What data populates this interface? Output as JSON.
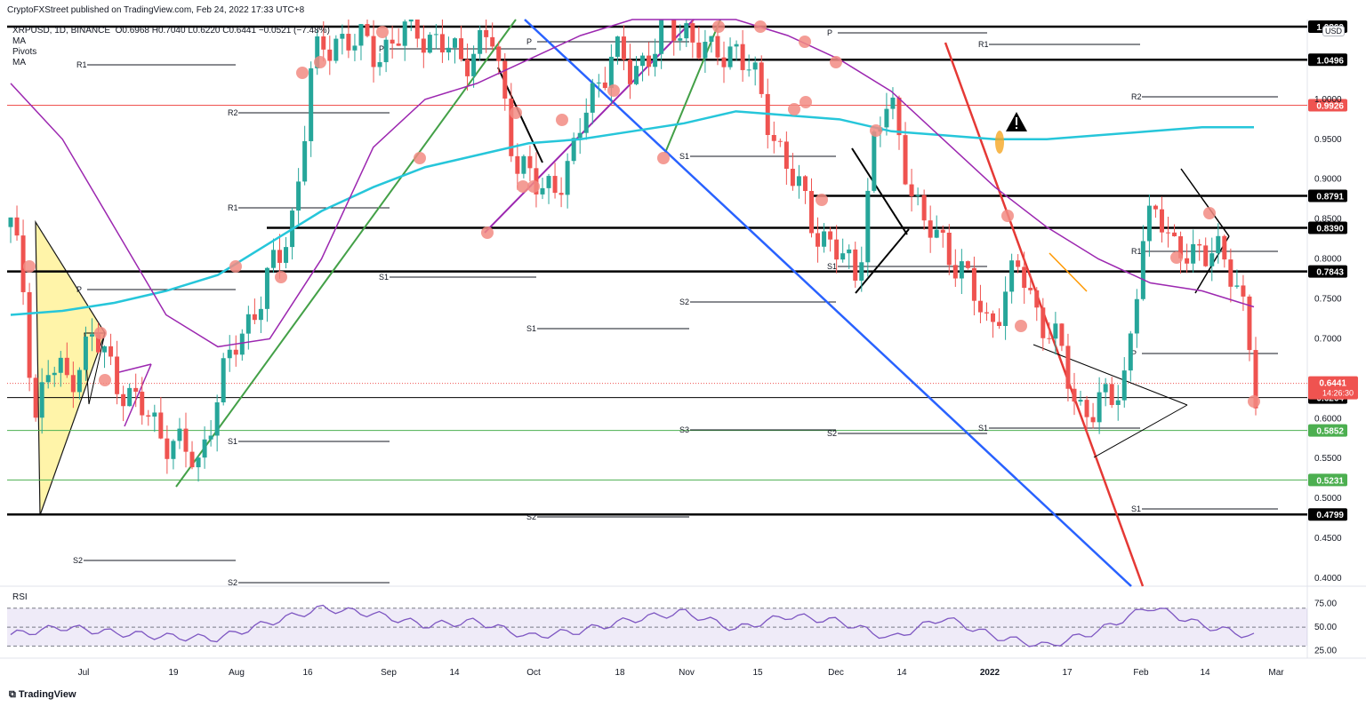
{
  "header": {
    "published": "CryptoFXStreet published on TradingView.com, Feb 24, 2022 17:33 UTC+8",
    "symbol": "XRPUSD, 1D, BINANCE",
    "ohlc": "O0.6968 H0.7040 L0.6220 C0.6441 −0.0521 (−7.48%)",
    "indicators": [
      "MA",
      "Pivots",
      "MA"
    ]
  },
  "currency": "USD",
  "brand": "TradingView",
  "rsi_label": "RSI",
  "colors": {
    "up": "#26a69a",
    "down": "#ef5350",
    "ma_short": "#9c27b0",
    "ma_long": "#26c6da",
    "trend_green": "#43a047",
    "trend_blue": "#2962ff",
    "trend_red": "#e53935",
    "level_black": "#000000",
    "level_green": "#4caf50",
    "marker": "#f28b82"
  },
  "chart_data": [
    {
      "type": "line",
      "title": "",
      "y_axis_ticks": [
        0.4,
        0.45,
        0.5,
        0.55,
        0.6,
        0.65,
        0.7,
        0.75,
        0.8,
        0.85,
        0.9,
        0.95,
        1.0
      ],
      "y_axis_tick_labels": [
        "0.4000",
        "0.4500",
        "0.5000",
        "0.5500",
        "0.6000",
        "",
        "0.7000",
        "0.7500",
        "0.8000",
        "0.8500",
        "0.9000",
        "0.9500",
        "1.0000"
      ],
      "x_axis_ticks": [
        "Jul",
        "19",
        "Aug",
        "16",
        "Sep",
        "14",
        "Oct",
        "18",
        "Nov",
        "15",
        "Dec",
        "14",
        "2022",
        "17",
        "Feb",
        "14",
        "Mar"
      ],
      "ylim": [
        0.39,
        1.1
      ],
      "price_levels": [
        {
          "value": 1.0496,
          "label": "1.0496",
          "color": "#000000"
        },
        {
          "value": 0.9926,
          "label": "0.9926",
          "color": "#ef5350"
        },
        {
          "value": 0.8791,
          "label": "0.8791",
          "color": "#000000"
        },
        {
          "value": 0.839,
          "label": "0.8390",
          "color": "#000000"
        },
        {
          "value": 0.7843,
          "label": "0.7843",
          "color": "#000000"
        },
        {
          "value": 0.6264,
          "label": "0.6264",
          "color": "#000000"
        },
        {
          "value": 0.5852,
          "label": "0.5852",
          "color": "#4caf50"
        },
        {
          "value": 0.5231,
          "label": "0.5231",
          "color": "#4caf50"
        },
        {
          "value": 0.4799,
          "label": "0.4799",
          "color": "#000000"
        }
      ],
      "current_price": {
        "value": 0.6441,
        "label": "0.6441",
        "countdown": "14:26:30"
      },
      "top_level_label": "1.0860",
      "pivot_labels": [
        "P",
        "R1",
        "R2",
        "S1",
        "S2",
        "S3"
      ],
      "series": [
        {
          "name": "MA",
          "x": [
            0,
            10,
            20,
            30,
            40,
            50,
            60,
            70,
            80,
            90,
            100,
            110,
            120,
            130,
            140,
            150,
            160,
            170,
            180,
            190,
            200,
            210,
            220,
            230,
            240
          ],
          "values": [
            0.73,
            0.735,
            0.745,
            0.76,
            0.78,
            0.82,
            0.86,
            0.89,
            0.915,
            0.93,
            0.945,
            0.95,
            0.96,
            0.97,
            0.985,
            0.98,
            0.975,
            0.96,
            0.955,
            0.95,
            0.95,
            0.955,
            0.96,
            0.965,
            0.965
          ]
        },
        {
          "name": "MA",
          "x": [
            0,
            10,
            20,
            30,
            40,
            50,
            60,
            70,
            80,
            90,
            100,
            110,
            120,
            130,
            140,
            150,
            160,
            170,
            180,
            190,
            200,
            210,
            220,
            230,
            240
          ],
          "values": [
            1.02,
            0.95,
            0.84,
            0.73,
            0.69,
            0.7,
            0.8,
            0.94,
            1.0,
            1.02,
            1.05,
            1.08,
            1.1,
            1.11,
            1.1,
            1.08,
            1.05,
            1.01,
            0.95,
            0.89,
            0.84,
            0.8,
            0.77,
            0.76,
            0.74
          ]
        }
      ]
    },
    {
      "type": "line",
      "title": "",
      "yticks": [
        25,
        50,
        75
      ],
      "y_tick_labels": [
        "25.00",
        "50.00",
        "75.00"
      ],
      "ylim": [
        20,
        82
      ],
      "bands": [
        30,
        70
      ],
      "series": [
        {
          "name": "",
          "x": [
            0,
            10,
            20,
            30,
            40,
            50,
            60,
            70,
            80,
            90,
            100,
            110,
            120,
            130,
            140,
            150,
            160,
            170,
            180,
            190,
            200,
            210,
            220,
            230,
            240
          ],
          "values": [
            42,
            50,
            44,
            40,
            38,
            55,
            70,
            64,
            52,
            56,
            40,
            46,
            58,
            66,
            48,
            62,
            56,
            38,
            60,
            40,
            30,
            46,
            72,
            52,
            40
          ]
        }
      ]
    }
  ]
}
